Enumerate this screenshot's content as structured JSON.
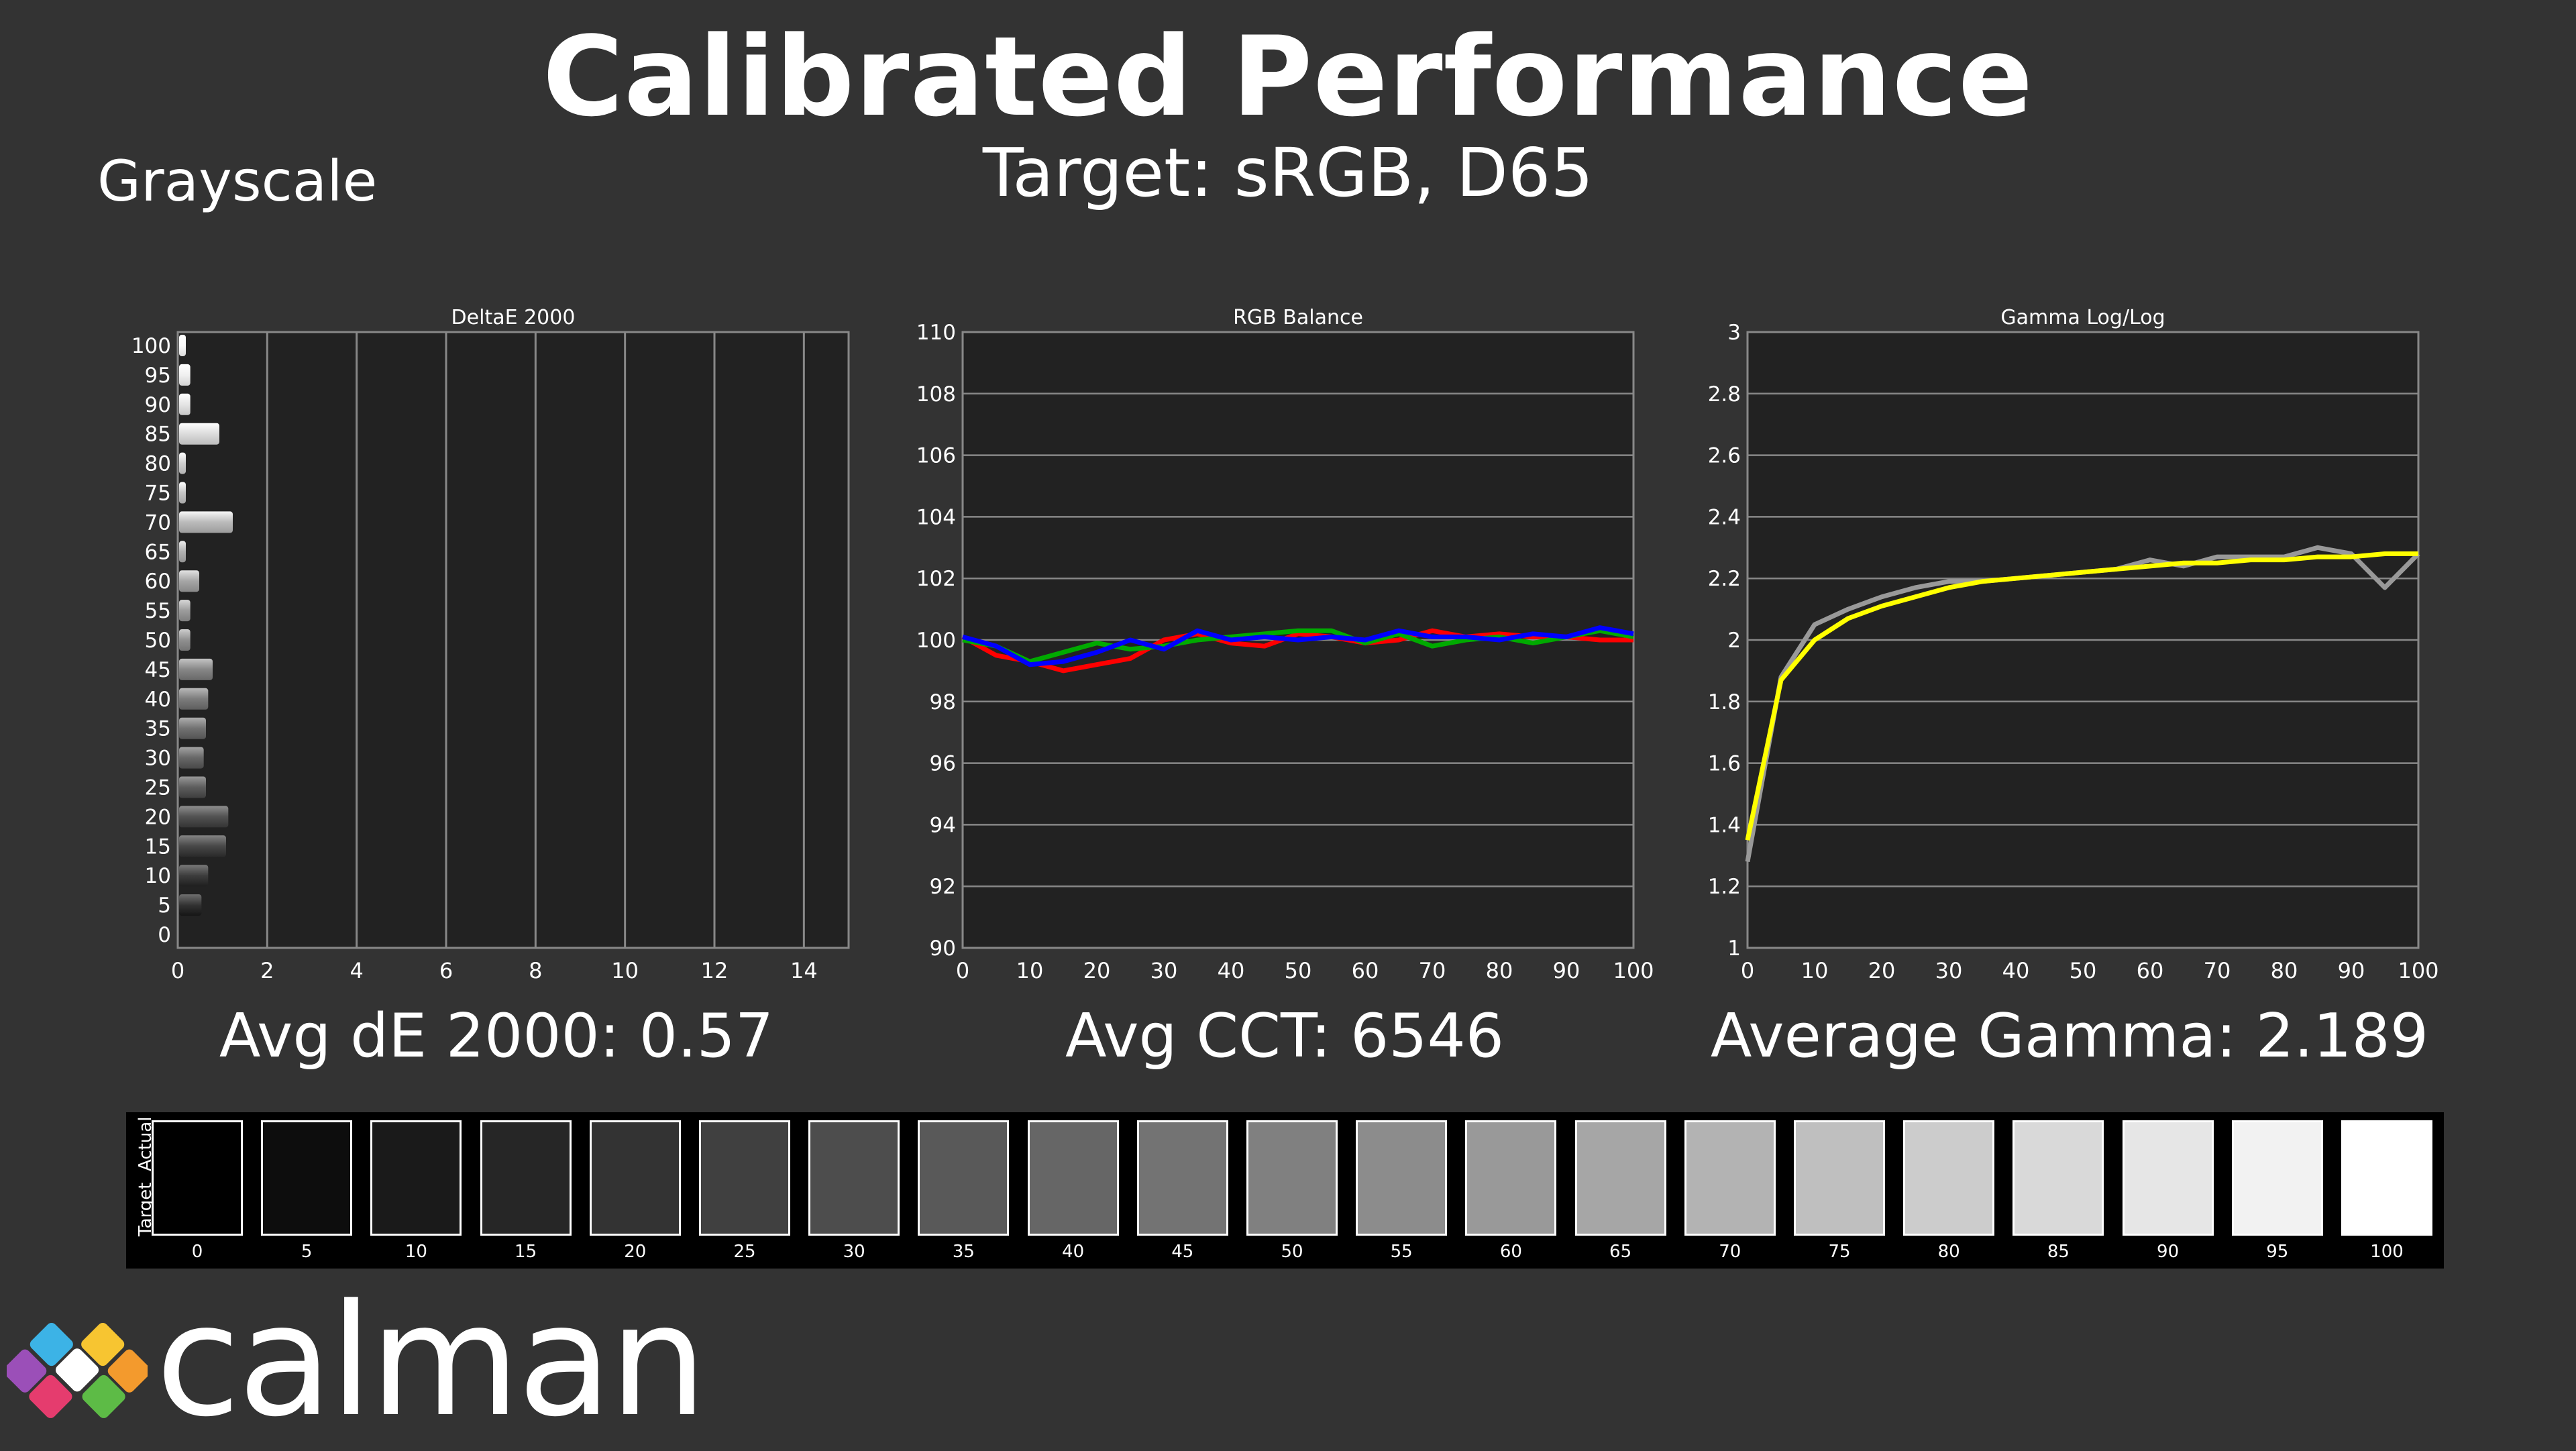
{
  "header": {
    "title": "Calibrated Performance",
    "subtitle": "Target: sRGB, D65",
    "section": "Grayscale"
  },
  "summaries": {
    "de": "Avg dE 2000: 0.57",
    "cct": "Avg CCT: 6546",
    "gamma": "Average Gamma: 2.189"
  },
  "swatches": {
    "side_labels": [
      "Actual",
      "Target"
    ],
    "levels": [
      0,
      5,
      10,
      15,
      20,
      25,
      30,
      35,
      40,
      45,
      50,
      55,
      60,
      65,
      70,
      75,
      80,
      85,
      90,
      95,
      100
    ]
  },
  "brand": {
    "name": "calman"
  },
  "colors": {
    "background": "#333333",
    "plot": "#222222",
    "grid": "#888888",
    "gamma_target": "#ffff00",
    "gamma_measured": "#999999"
  },
  "chart_data": [
    {
      "type": "bar",
      "orientation": "horizontal",
      "title": "DeltaE 2000",
      "categories": [
        0,
        5,
        10,
        15,
        20,
        25,
        30,
        35,
        40,
        45,
        50,
        55,
        60,
        65,
        70,
        75,
        80,
        85,
        90,
        95,
        100
      ],
      "values": [
        0.0,
        0.5,
        0.65,
        1.05,
        1.1,
        0.6,
        0.55,
        0.6,
        0.65,
        0.75,
        0.25,
        0.25,
        0.45,
        0.15,
        1.2,
        0.15,
        0.15,
        0.9,
        0.25,
        0.25,
        0.15
      ],
      "xlim": [
        0,
        15
      ],
      "xticks": [
        0,
        2,
        4,
        6,
        8,
        10,
        12,
        14
      ],
      "ylim": [
        0,
        100
      ],
      "grid": true
    },
    {
      "type": "line",
      "title": "RGB Balance",
      "x": [
        0,
        5,
        10,
        15,
        20,
        25,
        30,
        35,
        40,
        45,
        50,
        55,
        60,
        65,
        70,
        75,
        80,
        85,
        90,
        95,
        100
      ],
      "series": [
        {
          "color": "#ff0000",
          "values": [
            100.1,
            99.5,
            99.3,
            99.0,
            99.2,
            99.4,
            100.0,
            100.2,
            99.9,
            99.8,
            100.2,
            100.1,
            99.9,
            100.0,
            100.3,
            100.1,
            100.2,
            100.1,
            100.1,
            100.0,
            100.0
          ]
        },
        {
          "color": "#00aa00",
          "values": [
            100.0,
            99.8,
            99.3,
            99.6,
            99.9,
            99.7,
            99.8,
            100.0,
            100.1,
            100.2,
            100.3,
            100.3,
            99.9,
            100.2,
            99.8,
            100.0,
            100.1,
            99.9,
            100.1,
            100.3,
            100.1
          ]
        },
        {
          "color": "#0000ff",
          "values": [
            100.1,
            99.8,
            99.2,
            99.3,
            99.6,
            100.0,
            99.7,
            100.3,
            100.0,
            100.1,
            100.0,
            100.1,
            100.0,
            100.3,
            100.1,
            100.1,
            100.0,
            100.2,
            100.1,
            100.4,
            100.2
          ]
        }
      ],
      "xlim": [
        0,
        100
      ],
      "ylim": [
        90,
        110
      ],
      "xticks": [
        0,
        10,
        20,
        30,
        40,
        50,
        60,
        70,
        80,
        90,
        100
      ],
      "yticks": [
        90,
        92,
        94,
        96,
        98,
        100,
        102,
        104,
        106,
        108,
        110
      ],
      "grid": true
    },
    {
      "type": "line",
      "title": "Gamma Log/Log",
      "x": [
        0,
        5,
        10,
        15,
        20,
        25,
        30,
        35,
        40,
        45,
        50,
        55,
        60,
        65,
        70,
        75,
        80,
        85,
        90,
        95,
        100
      ],
      "series": [
        {
          "color": "#999999",
          "values": [
            1.28,
            1.88,
            2.05,
            2.1,
            2.14,
            2.17,
            2.19,
            2.19,
            2.2,
            2.21,
            2.22,
            2.23,
            2.26,
            2.24,
            2.27,
            2.27,
            2.27,
            2.3,
            2.28,
            2.17,
            2.28
          ]
        },
        {
          "color": "#ffff00",
          "values": [
            1.35,
            1.87,
            2.0,
            2.07,
            2.11,
            2.14,
            2.17,
            2.19,
            2.2,
            2.21,
            2.22,
            2.23,
            2.24,
            2.25,
            2.25,
            2.26,
            2.26,
            2.27,
            2.27,
            2.28,
            2.28
          ]
        }
      ],
      "xlim": [
        0,
        100
      ],
      "ylim": [
        1,
        3
      ],
      "xticks": [
        0,
        10,
        20,
        30,
        40,
        50,
        60,
        70,
        80,
        90,
        100
      ],
      "yticks": [
        1,
        1.2,
        1.4,
        1.6,
        1.8,
        2,
        2.2,
        2.4,
        2.6,
        2.8,
        3
      ],
      "grid": true
    }
  ]
}
